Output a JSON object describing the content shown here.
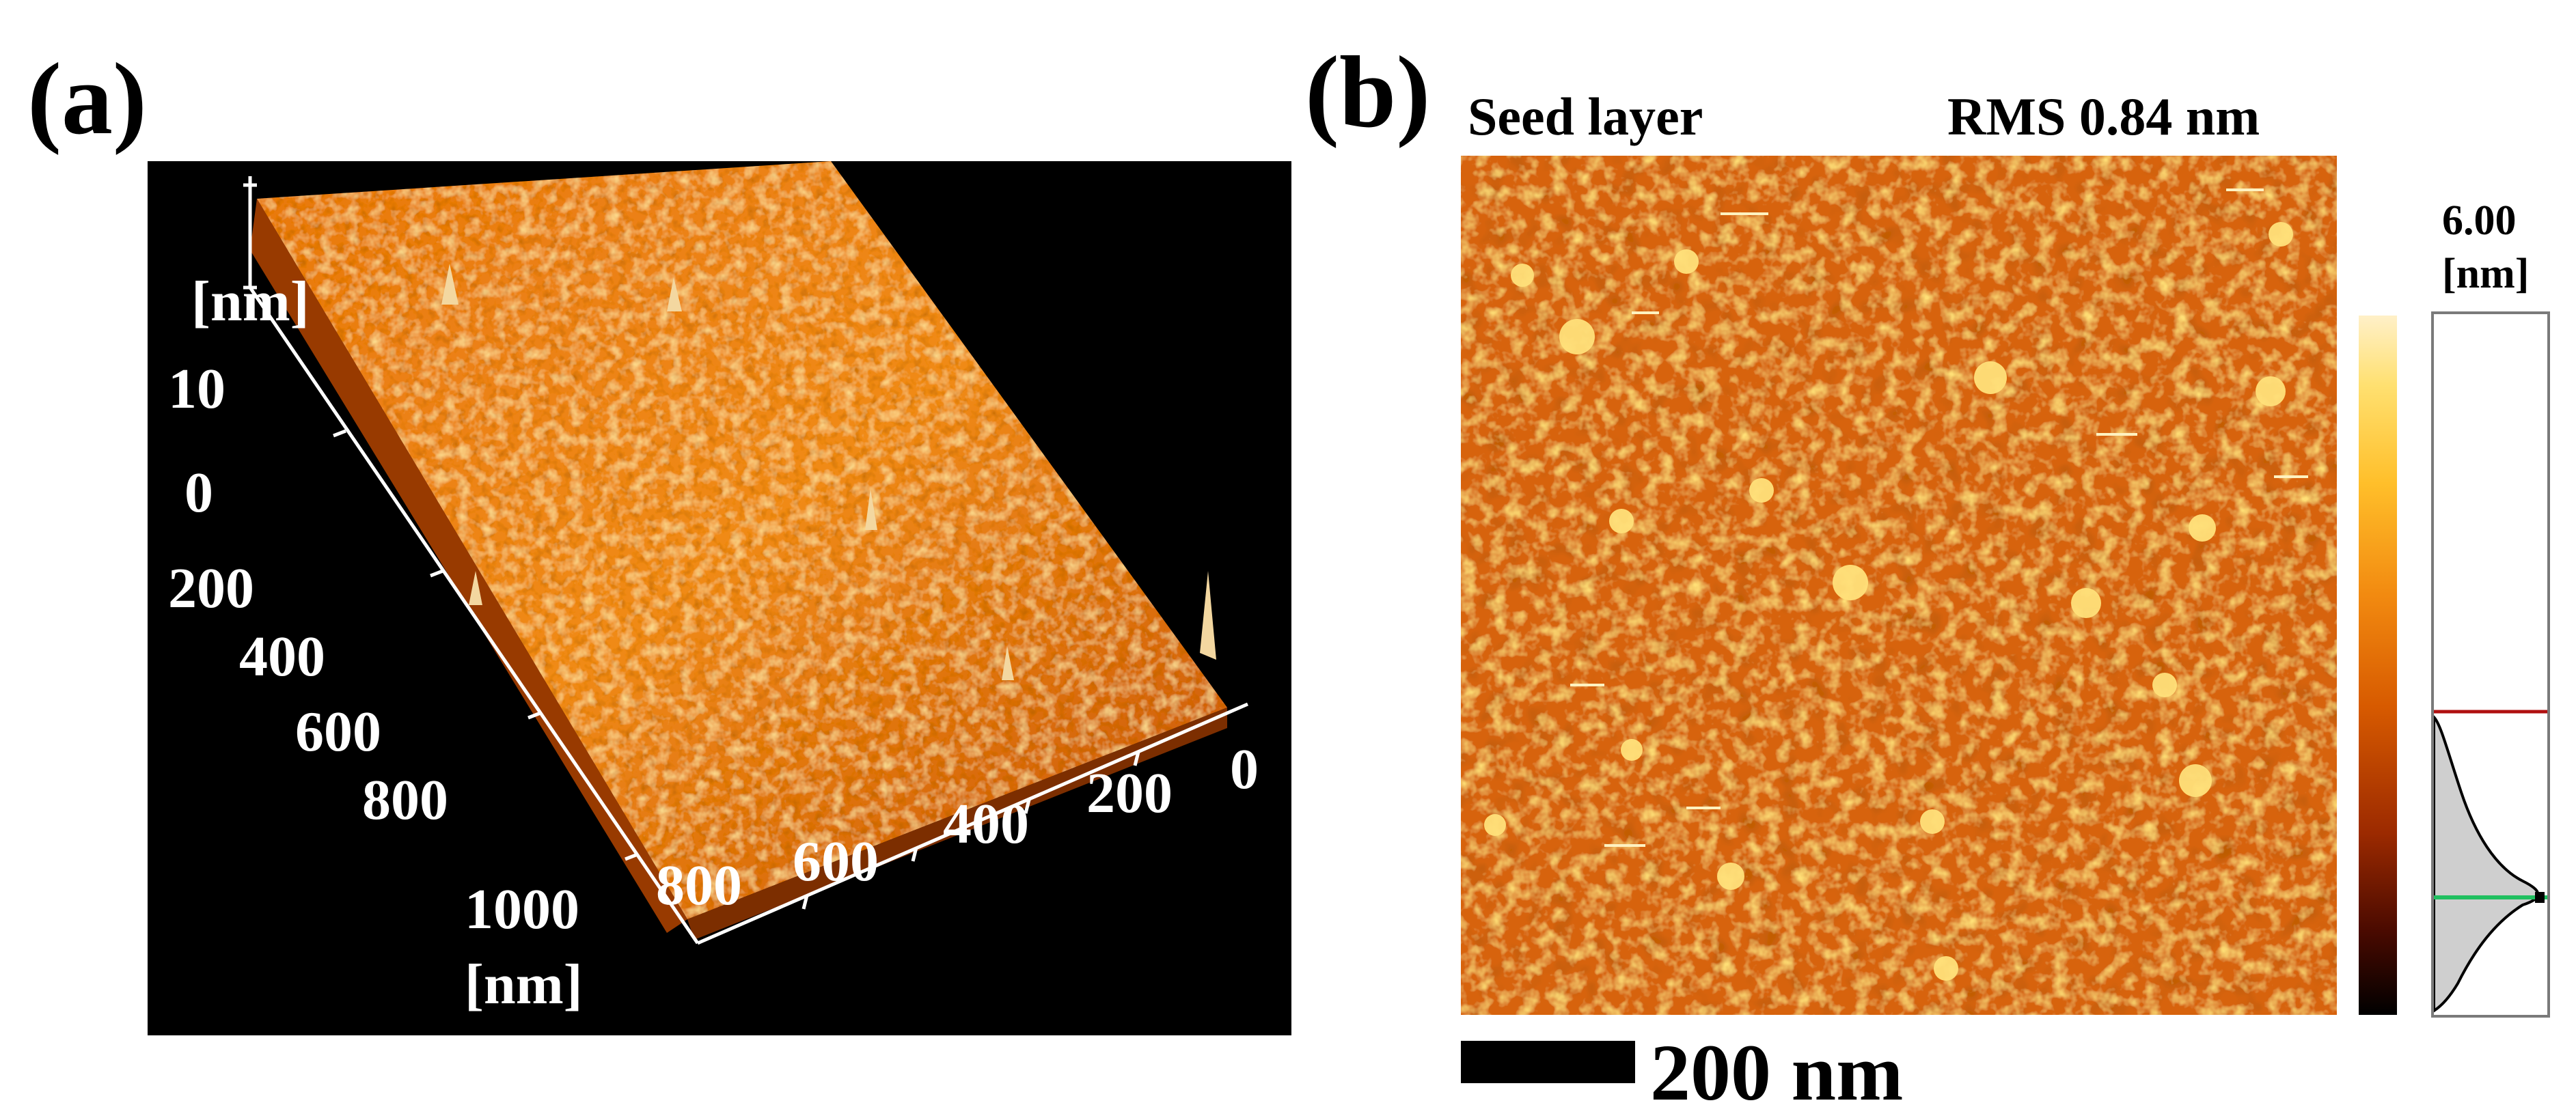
{
  "panel_a": {
    "label": "(a)",
    "z_unit": "[nm]",
    "z_ticks": [
      "10",
      "0"
    ],
    "y_ticks": [
      "200",
      "400",
      "600",
      "800",
      "1000"
    ],
    "x_ticks": [
      "800",
      "600",
      "400",
      "200",
      "0"
    ],
    "x_unit": "[nm]",
    "colors": {
      "background": "#000000",
      "surface_dark": "#b84300",
      "surface_mid": "#e87a10",
      "surface_light": "#ffc04a",
      "axis": "#ffffff"
    }
  },
  "panel_b": {
    "label": "(b)",
    "title_left": "Seed layer",
    "title_right": "RMS 0.84 nm",
    "scale_bar_label": "200 nm",
    "colorbar_max_value": "6.00",
    "colorbar_unit": "[nm]",
    "colors": {
      "map_base": "#d7640c",
      "grain": "#ffd246",
      "histogram_red_line": "#b01010",
      "histogram_green_line": "#20c060"
    }
  }
}
